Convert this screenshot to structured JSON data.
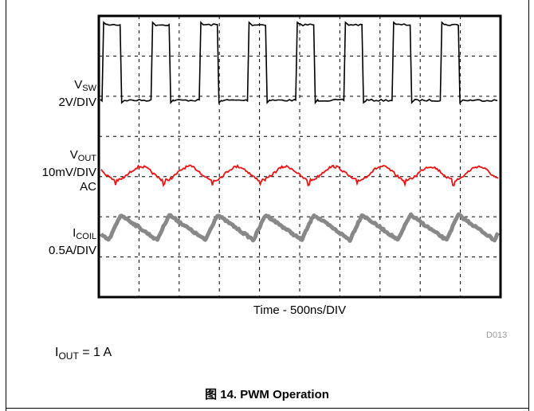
{
  "chart_data": {
    "type": "line",
    "title": "",
    "xlabel": "Time - 500ns/DIV",
    "divisions": {
      "x": 10,
      "y": 7
    },
    "grid": true,
    "period_div": 1.2,
    "series": [
      {
        "name": "VSW",
        "name_main": "V",
        "name_sub": "SW",
        "scale": "2V/DIV",
        "coupling": "",
        "color": "#000000",
        "shape": "square",
        "rise_div": [
          0.08,
          1.3,
          2.5,
          3.7,
          4.9,
          6.1,
          7.3,
          8.5
        ],
        "high_width_div": 0.45,
        "high_level_div": 0.0,
        "low_level_div": 2.2
      },
      {
        "name": "VOUT",
        "name_main": "V",
        "name_sub": "OUT",
        "scale": "10mV/DIV",
        "coupling": "AC",
        "color": "#ee1111",
        "shape": "ripple",
        "center_div": 3.92,
        "amplitude_div": 0.17,
        "peak_x_div": 1.05
      },
      {
        "name": "ICOIL",
        "name_main": "I",
        "name_sub": "COIL",
        "scale": "0.5A/DIV",
        "coupling": "",
        "color": "#888888",
        "shape": "triangle",
        "peak_level_div": 4.95,
        "valley_level_div": 5.58,
        "peak_x_div": 0.55
      }
    ]
  },
  "figure_id": "D013",
  "condition": {
    "main": "I",
    "sub": "OUT",
    "rest": " = 1 A"
  },
  "caption": "图 14. PWM Operation"
}
